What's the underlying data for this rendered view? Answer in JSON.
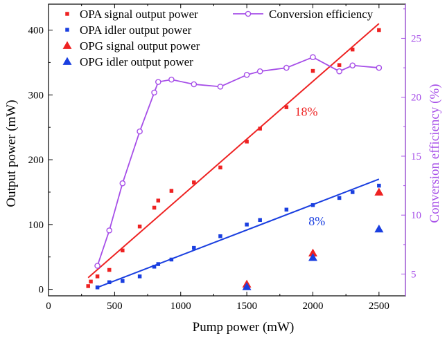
{
  "chart_data": {
    "type": "scatter",
    "xlabel": "Pump power (mW)",
    "ylabel": "Output power (mW)",
    "y2label": "Conversion efficiency (%)",
    "xlim": [
      0,
      2700
    ],
    "ylim": [
      -10,
      440
    ],
    "y2lim": [
      3.15,
      27.9
    ],
    "xticks": [
      0,
      500,
      1000,
      1500,
      2000,
      2500
    ],
    "yticks": [
      0,
      100,
      200,
      300,
      400
    ],
    "y2ticks": [
      5,
      10,
      15,
      20,
      25
    ],
    "grid": false,
    "legend_position": "top",
    "colors": {
      "red": "#ee2222",
      "blue": "#1a3fe0",
      "purple": "#a64ee8",
      "axis": "#000000",
      "axis2": "#a64ee8"
    },
    "series": [
      {
        "name": "OPA signal output power",
        "marker": "square",
        "color": "red",
        "axis": "left",
        "x": [
          300,
          320,
          370,
          460,
          560,
          690,
          800,
          830,
          930,
          1100,
          1300,
          1500,
          1600,
          1800,
          2000,
          2200,
          2300,
          2500
        ],
        "y": [
          5,
          12,
          20,
          30,
          60,
          97,
          126,
          137,
          152,
          165,
          188,
          228,
          248,
          281,
          337,
          346,
          370,
          400
        ]
      },
      {
        "name": "OPA idler output power",
        "marker": "square",
        "color": "blue",
        "axis": "left",
        "x": [
          370,
          460,
          560,
          690,
          800,
          830,
          930,
          1100,
          1300,
          1500,
          1600,
          1800,
          2000,
          2200,
          2300,
          2500
        ],
        "y": [
          3,
          11,
          13,
          20,
          35,
          39,
          46,
          64,
          82,
          100,
          107,
          123,
          130,
          141,
          150,
          160
        ]
      },
      {
        "name": "OPG signal output power",
        "marker": "triangle",
        "color": "red",
        "axis": "left",
        "x": [
          1500,
          2000,
          2500
        ],
        "y": [
          8,
          56,
          150
        ]
      },
      {
        "name": "OPG idler output power",
        "marker": "triangle",
        "color": "blue",
        "axis": "left",
        "x": [
          1500,
          2000,
          2500
        ],
        "y": [
          4,
          49,
          93
        ]
      },
      {
        "name": "Conversion efficiency",
        "marker": "circle",
        "color": "purple",
        "axis": "right",
        "line": true,
        "x": [
          370,
          460,
          560,
          690,
          800,
          830,
          930,
          1100,
          1300,
          1500,
          1600,
          1800,
          2000,
          2200,
          2300,
          2500
        ],
        "y": [
          5.7,
          8.7,
          12.7,
          17.1,
          20.4,
          21.3,
          21.5,
          21.1,
          20.9,
          21.9,
          22.2,
          22.5,
          23.4,
          22.2,
          22.7,
          22.5
        ]
      }
    ],
    "fits": [
      {
        "color": "red",
        "label": "18%",
        "x": [
          300,
          2500
        ],
        "y": [
          18,
          410
        ],
        "label_at": [
          1950,
          268
        ]
      },
      {
        "color": "blue",
        "label": "8%",
        "x": [
          370,
          2500
        ],
        "y": [
          3,
          170
        ],
        "label_at": [
          2030,
          99
        ]
      }
    ]
  }
}
